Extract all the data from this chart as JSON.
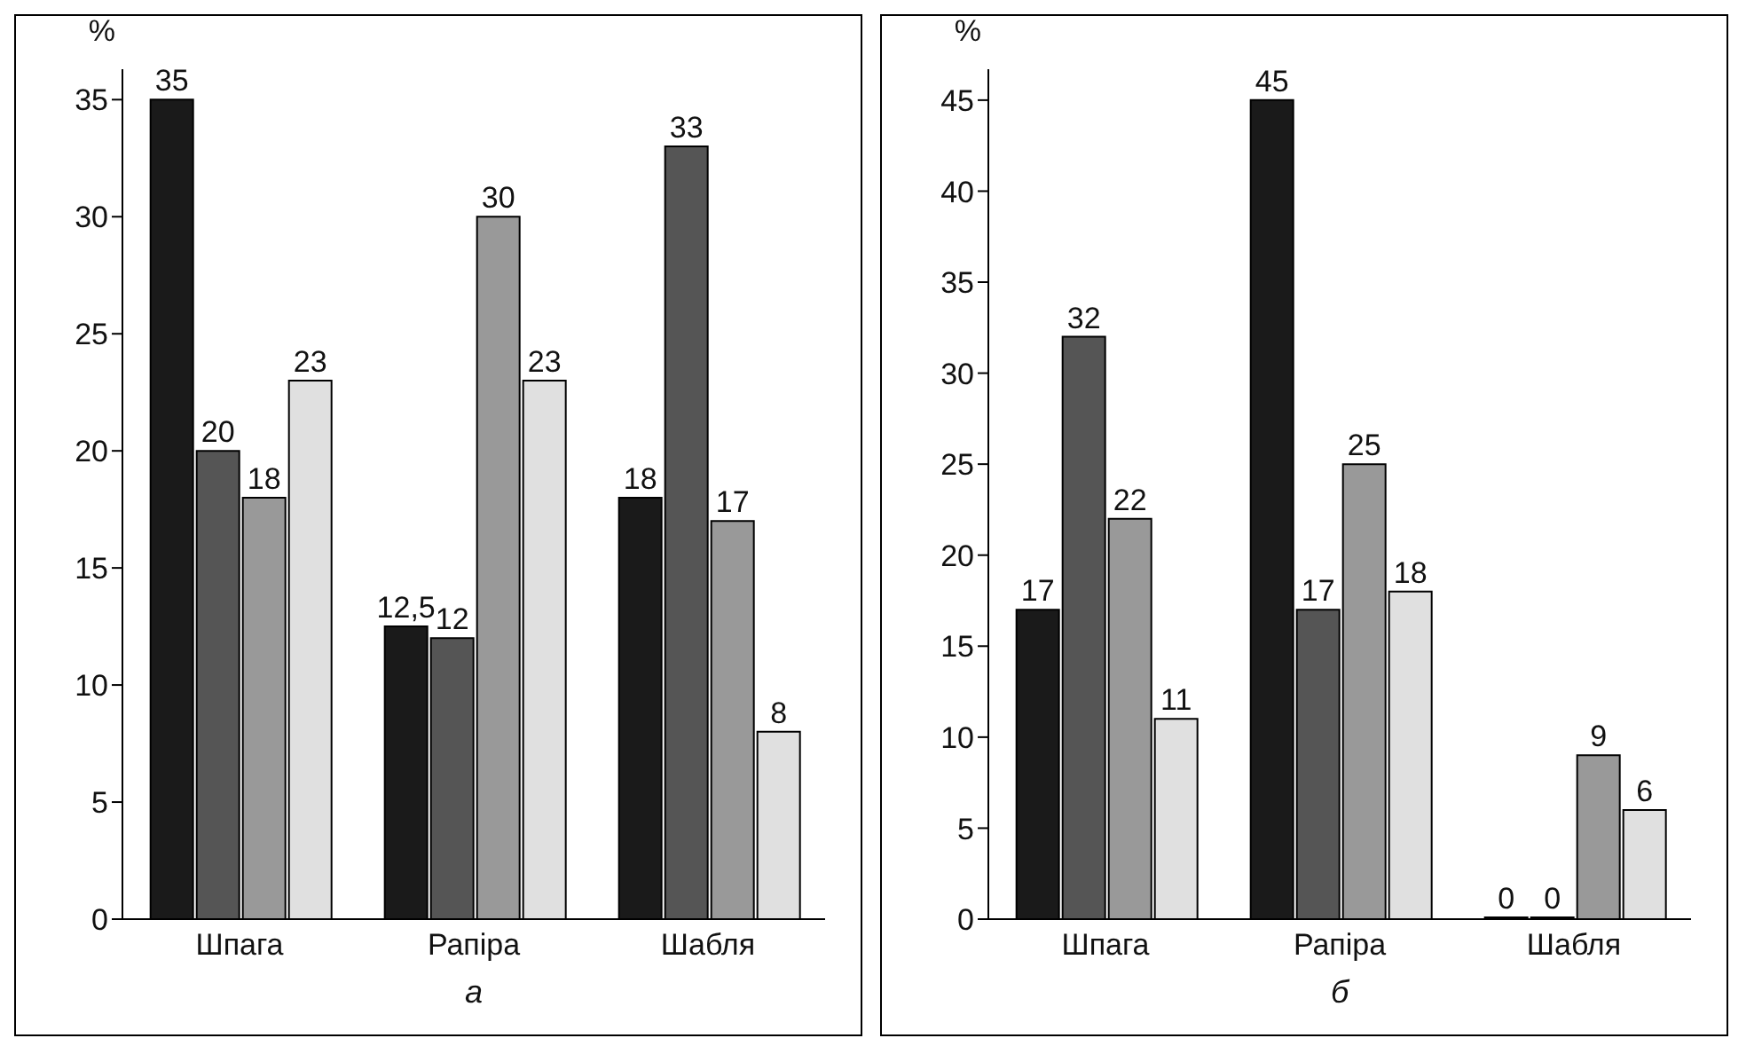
{
  "chart_data": [
    {
      "type": "bar",
      "xlabel": "а",
      "ylabel": "%",
      "categories": [
        "Шпага",
        "Рапіра",
        "Шабля"
      ],
      "ylim": [
        0,
        36.3
      ],
      "yticks": [
        0,
        5,
        10,
        15,
        20,
        25,
        30,
        35
      ],
      "grid": false,
      "legend": false,
      "series": [
        {
          "color": "#1a1a1a",
          "values": [
            35,
            12.5,
            18
          ],
          "value_labels": [
            "35",
            "12,5",
            "18"
          ]
        },
        {
          "color": "#555555",
          "values": [
            20,
            12,
            33
          ],
          "value_labels": [
            "20",
            "12",
            "33"
          ]
        },
        {
          "color": "#999999",
          "values": [
            18,
            30,
            17
          ],
          "value_labels": [
            "18",
            "30",
            "17"
          ]
        },
        {
          "color": "#e0e0e0",
          "values": [
            23,
            23,
            8
          ],
          "value_labels": [
            "23",
            "23",
            "8"
          ]
        }
      ]
    },
    {
      "type": "bar",
      "xlabel": "б",
      "ylabel": "%",
      "categories": [
        "Шпага",
        "Рапіра",
        "Шабля"
      ],
      "ylim": [
        0,
        46.7
      ],
      "yticks": [
        0,
        5,
        10,
        15,
        20,
        25,
        30,
        35,
        40,
        45
      ],
      "grid": false,
      "legend": false,
      "data_labels": true,
      "series": [
        {
          "color": "#1a1a1a",
          "values": [
            17,
            45,
            0
          ]
        },
        {
          "color": "#555555",
          "values": [
            32,
            17,
            0
          ]
        },
        {
          "color": "#999999",
          "values": [
            22,
            25,
            9
          ]
        },
        {
          "color": "#e0e0e0",
          "values": [
            11,
            18,
            6
          ]
        }
      ]
    }
  ]
}
